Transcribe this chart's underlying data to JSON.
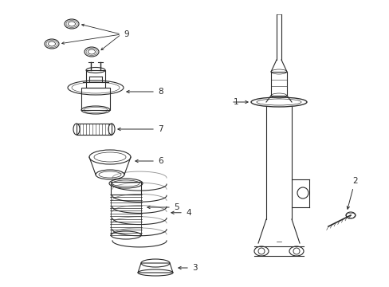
{
  "bg_color": "#ffffff",
  "line_color": "#2a2a2a",
  "line_width": 0.8,
  "fig_width": 4.89,
  "fig_height": 3.6,
  "dpi": 100
}
